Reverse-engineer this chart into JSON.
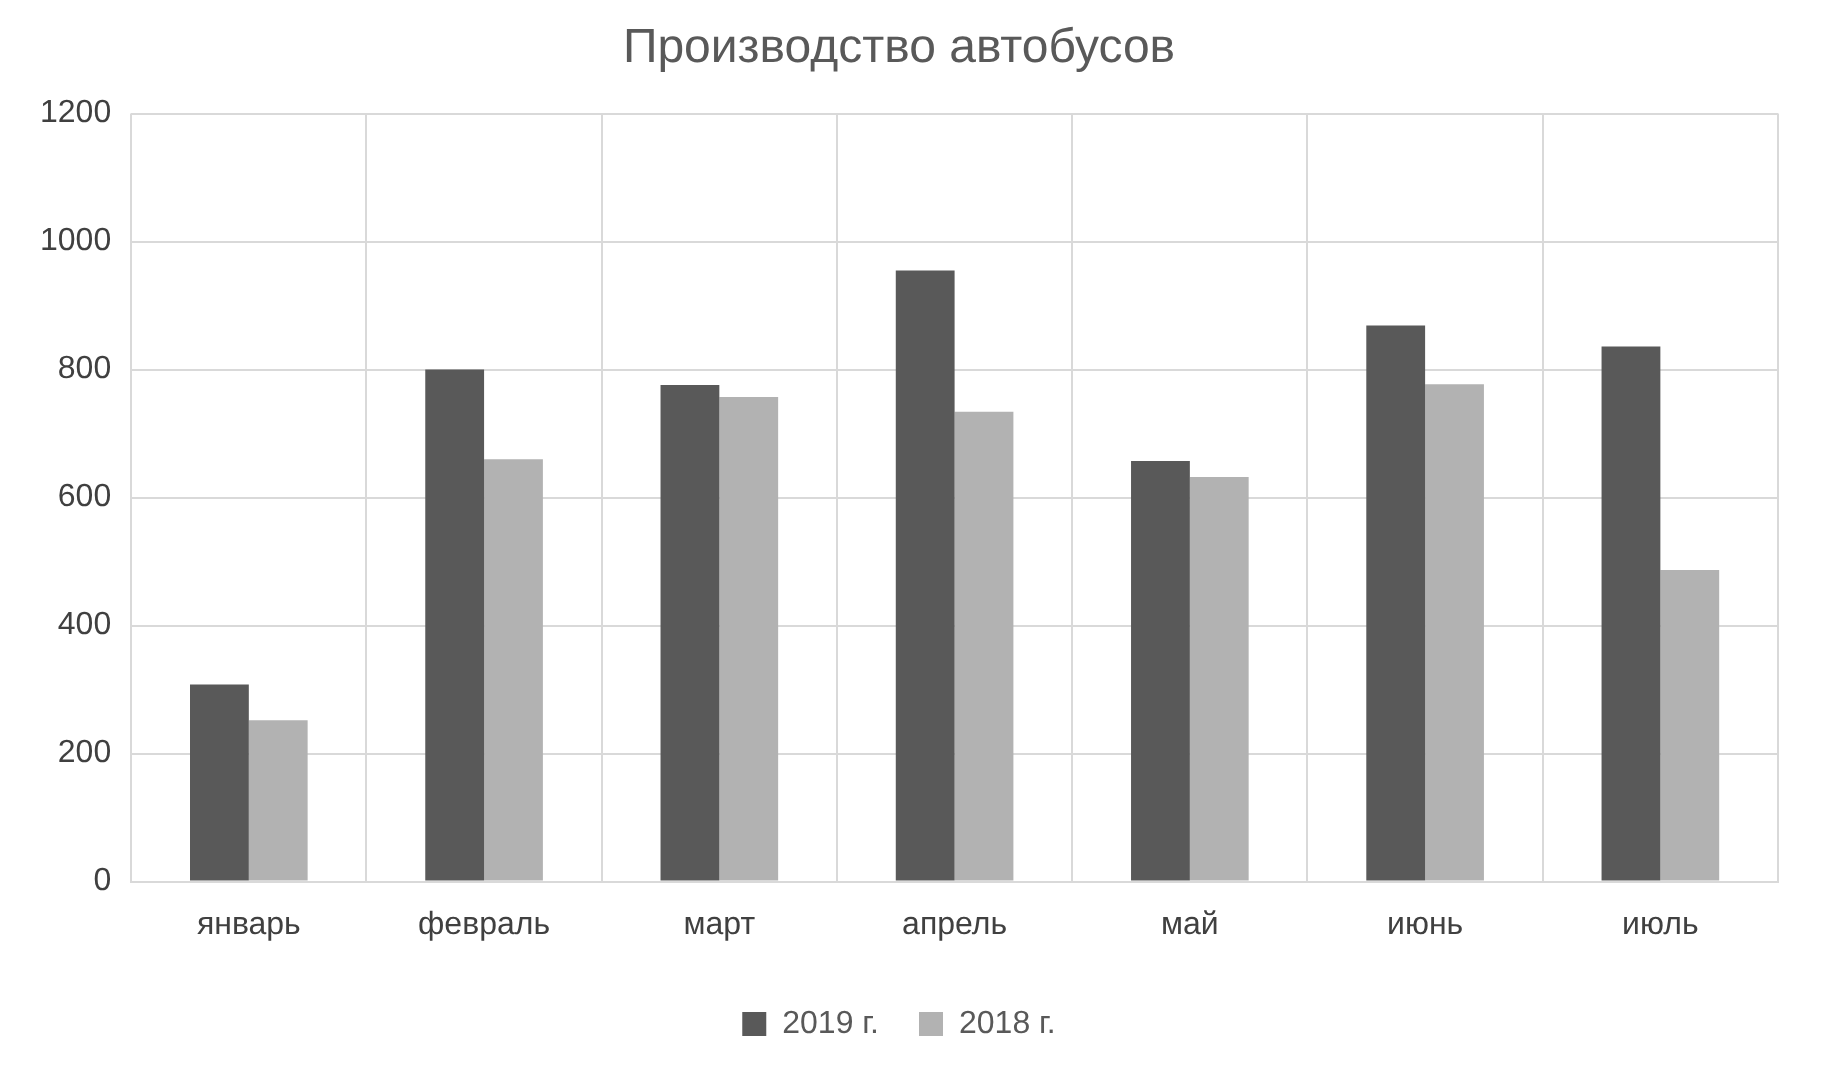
{
  "chart_data": {
    "type": "bar",
    "title": "Производство автобусов",
    "categories": [
      "январь",
      "февраль",
      "март",
      "апрель",
      "май",
      "июнь",
      "июль"
    ],
    "series": [
      {
        "name": "2019 г.",
        "color": "#595959",
        "values": [
          308,
          800,
          776,
          955,
          657,
          869,
          836
        ]
      },
      {
        "name": "2018 г.",
        "color": "#b2b2b2",
        "values": [
          252,
          660,
          757,
          734,
          632,
          777,
          487
        ]
      }
    ],
    "ylim": [
      0,
      1200
    ],
    "yticks": [
      0,
      200,
      400,
      600,
      800,
      1000,
      1200
    ],
    "grid": true,
    "legend": "bottom"
  }
}
